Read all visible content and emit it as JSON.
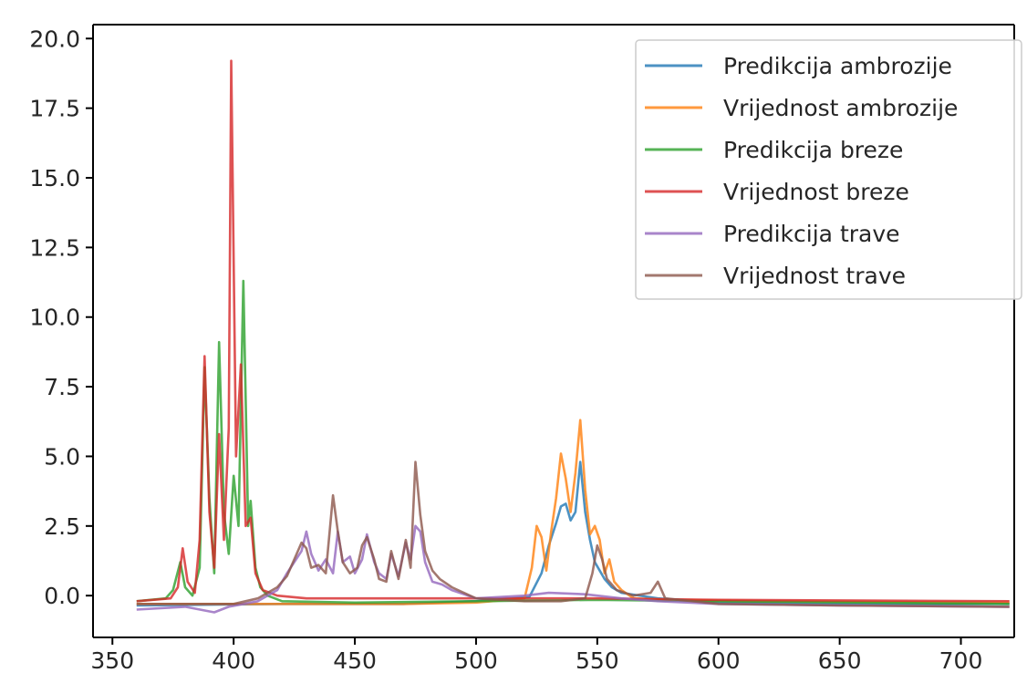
{
  "chart_data": {
    "type": "line",
    "title": "",
    "xlabel": "",
    "ylabel": "",
    "xlim": [
      342,
      722
    ],
    "ylim": [
      -1.5,
      20.5
    ],
    "xticks": [
      "350",
      "400",
      "450",
      "500",
      "550",
      "600",
      "650",
      "700"
    ],
    "yticks": [
      "0.0",
      "2.5",
      "5.0",
      "7.5",
      "10.0",
      "12.5",
      "15.0",
      "17.5",
      "20.0"
    ],
    "grid": false,
    "legend_position": "top-right",
    "series": [
      {
        "name": "Predikcija ambrozije",
        "color": "#1f77b4",
        "points": [
          [
            360,
            -0.35
          ],
          [
            420,
            -0.3
          ],
          [
            470,
            -0.3
          ],
          [
            500,
            -0.2
          ],
          [
            522,
            -0.05
          ],
          [
            527,
            0.8
          ],
          [
            530,
            1.8
          ],
          [
            533,
            2.6
          ],
          [
            535,
            3.2
          ],
          [
            537,
            3.3
          ],
          [
            539,
            2.7
          ],
          [
            541,
            3.0
          ],
          [
            543,
            4.8
          ],
          [
            545,
            3.0
          ],
          [
            547,
            2.0
          ],
          [
            549,
            1.2
          ],
          [
            551,
            0.9
          ],
          [
            553,
            0.6
          ],
          [
            556,
            0.3
          ],
          [
            560,
            0.1
          ],
          [
            575,
            -0.1
          ],
          [
            600,
            -0.25
          ],
          [
            650,
            -0.3
          ],
          [
            720,
            -0.3
          ]
        ]
      },
      {
        "name": "Vrijednost ambrozije",
        "color": "#ff7f0e",
        "points": [
          [
            360,
            -0.3
          ],
          [
            420,
            -0.3
          ],
          [
            470,
            -0.3
          ],
          [
            500,
            -0.25
          ],
          [
            520,
            -0.1
          ],
          [
            523,
            1.0
          ],
          [
            525,
            2.5
          ],
          [
            527,
            2.1
          ],
          [
            529,
            0.9
          ],
          [
            531,
            2.3
          ],
          [
            533,
            3.5
          ],
          [
            535,
            5.1
          ],
          [
            537,
            4.2
          ],
          [
            539,
            3.0
          ],
          [
            541,
            4.4
          ],
          [
            543,
            6.3
          ],
          [
            545,
            3.8
          ],
          [
            547,
            2.2
          ],
          [
            549,
            2.5
          ],
          [
            551,
            2.0
          ],
          [
            553,
            0.8
          ],
          [
            555,
            1.3
          ],
          [
            557,
            0.5
          ],
          [
            560,
            0.2
          ],
          [
            565,
            -0.1
          ],
          [
            580,
            -0.15
          ],
          [
            620,
            -0.2
          ],
          [
            720,
            -0.25
          ]
        ]
      },
      {
        "name": "Predikcija breze",
        "color": "#2ca02c",
        "points": [
          [
            360,
            -0.2
          ],
          [
            372,
            -0.1
          ],
          [
            375,
            0.2
          ],
          [
            378,
            1.2
          ],
          [
            380,
            0.3
          ],
          [
            383,
            0.0
          ],
          [
            386,
            1.0
          ],
          [
            388,
            8.2
          ],
          [
            390,
            3.5
          ],
          [
            392,
            0.8
          ],
          [
            394,
            9.1
          ],
          [
            396,
            3.0
          ],
          [
            398,
            1.5
          ],
          [
            400,
            4.3
          ],
          [
            402,
            2.5
          ],
          [
            404,
            11.3
          ],
          [
            406,
            2.5
          ],
          [
            407,
            3.4
          ],
          [
            409,
            1.0
          ],
          [
            411,
            0.3
          ],
          [
            414,
            0.0
          ],
          [
            420,
            -0.2
          ],
          [
            450,
            -0.25
          ],
          [
            500,
            -0.2
          ],
          [
            550,
            -0.15
          ],
          [
            600,
            -0.2
          ],
          [
            720,
            -0.3
          ]
        ]
      },
      {
        "name": "Vrijednost breze",
        "color": "#d62728",
        "points": [
          [
            360,
            -0.2
          ],
          [
            374,
            -0.1
          ],
          [
            377,
            0.3
          ],
          [
            379,
            1.7
          ],
          [
            381,
            0.5
          ],
          [
            384,
            0.1
          ],
          [
            386,
            2.0
          ],
          [
            388,
            8.6
          ],
          [
            390,
            3.0
          ],
          [
            392,
            1.0
          ],
          [
            394,
            5.8
          ],
          [
            396,
            2.0
          ],
          [
            398,
            6.0
          ],
          [
            399,
            19.2
          ],
          [
            401,
            5.0
          ],
          [
            403,
            8.3
          ],
          [
            405,
            2.5
          ],
          [
            407,
            2.8
          ],
          [
            409,
            0.8
          ],
          [
            412,
            0.2
          ],
          [
            418,
            0.0
          ],
          [
            430,
            -0.1
          ],
          [
            500,
            -0.1
          ],
          [
            550,
            -0.1
          ],
          [
            600,
            -0.15
          ],
          [
            720,
            -0.2
          ]
        ]
      },
      {
        "name": "Predikcija trave",
        "color": "#9467bd",
        "points": [
          [
            360,
            -0.5
          ],
          [
            380,
            -0.4
          ],
          [
            392,
            -0.6
          ],
          [
            398,
            -0.4
          ],
          [
            410,
            -0.2
          ],
          [
            418,
            0.2
          ],
          [
            422,
            0.8
          ],
          [
            425,
            1.2
          ],
          [
            428,
            1.6
          ],
          [
            430,
            2.3
          ],
          [
            432,
            1.5
          ],
          [
            435,
            0.9
          ],
          [
            438,
            1.3
          ],
          [
            441,
            0.8
          ],
          [
            443,
            2.3
          ],
          [
            445,
            1.2
          ],
          [
            448,
            1.4
          ],
          [
            450,
            0.8
          ],
          [
            453,
            1.3
          ],
          [
            455,
            2.2
          ],
          [
            458,
            1.2
          ],
          [
            460,
            0.8
          ],
          [
            463,
            0.6
          ],
          [
            465,
            1.5
          ],
          [
            468,
            0.7
          ],
          [
            471,
            1.9
          ],
          [
            473,
            1.3
          ],
          [
            475,
            2.5
          ],
          [
            477,
            2.3
          ],
          [
            479,
            1.2
          ],
          [
            482,
            0.5
          ],
          [
            486,
            0.4
          ],
          [
            490,
            0.2
          ],
          [
            500,
            -0.1
          ],
          [
            520,
            0.0
          ],
          [
            530,
            0.1
          ],
          [
            545,
            0.05
          ],
          [
            560,
            -0.1
          ],
          [
            575,
            -0.2
          ],
          [
            600,
            -0.3
          ],
          [
            650,
            -0.35
          ],
          [
            720,
            -0.4
          ]
        ]
      },
      {
        "name": "Vrijednost trave",
        "color": "#8c564b",
        "points": [
          [
            360,
            -0.3
          ],
          [
            400,
            -0.3
          ],
          [
            410,
            -0.1
          ],
          [
            418,
            0.3
          ],
          [
            422,
            0.7
          ],
          [
            425,
            1.3
          ],
          [
            428,
            1.9
          ],
          [
            430,
            1.7
          ],
          [
            432,
            1.0
          ],
          [
            435,
            1.1
          ],
          [
            438,
            0.8
          ],
          [
            441,
            3.6
          ],
          [
            443,
            2.3
          ],
          [
            445,
            1.2
          ],
          [
            448,
            0.8
          ],
          [
            451,
            1.0
          ],
          [
            453,
            1.8
          ],
          [
            455,
            2.1
          ],
          [
            458,
            1.3
          ],
          [
            460,
            0.6
          ],
          [
            463,
            0.5
          ],
          [
            465,
            1.6
          ],
          [
            468,
            0.6
          ],
          [
            471,
            2.0
          ],
          [
            473,
            1.0
          ],
          [
            475,
            4.8
          ],
          [
            477,
            2.9
          ],
          [
            479,
            1.6
          ],
          [
            482,
            0.9
          ],
          [
            485,
            0.6
          ],
          [
            490,
            0.3
          ],
          [
            500,
            -0.1
          ],
          [
            520,
            -0.2
          ],
          [
            535,
            -0.2
          ],
          [
            545,
            -0.1
          ],
          [
            548,
            0.8
          ],
          [
            550,
            1.8
          ],
          [
            552,
            1.3
          ],
          [
            554,
            0.6
          ],
          [
            558,
            0.2
          ],
          [
            565,
            0.0
          ],
          [
            572,
            0.1
          ],
          [
            575,
            0.5
          ],
          [
            578,
            -0.1
          ],
          [
            600,
            -0.3
          ],
          [
            650,
            -0.35
          ],
          [
            720,
            -0.4
          ]
        ]
      }
    ]
  }
}
